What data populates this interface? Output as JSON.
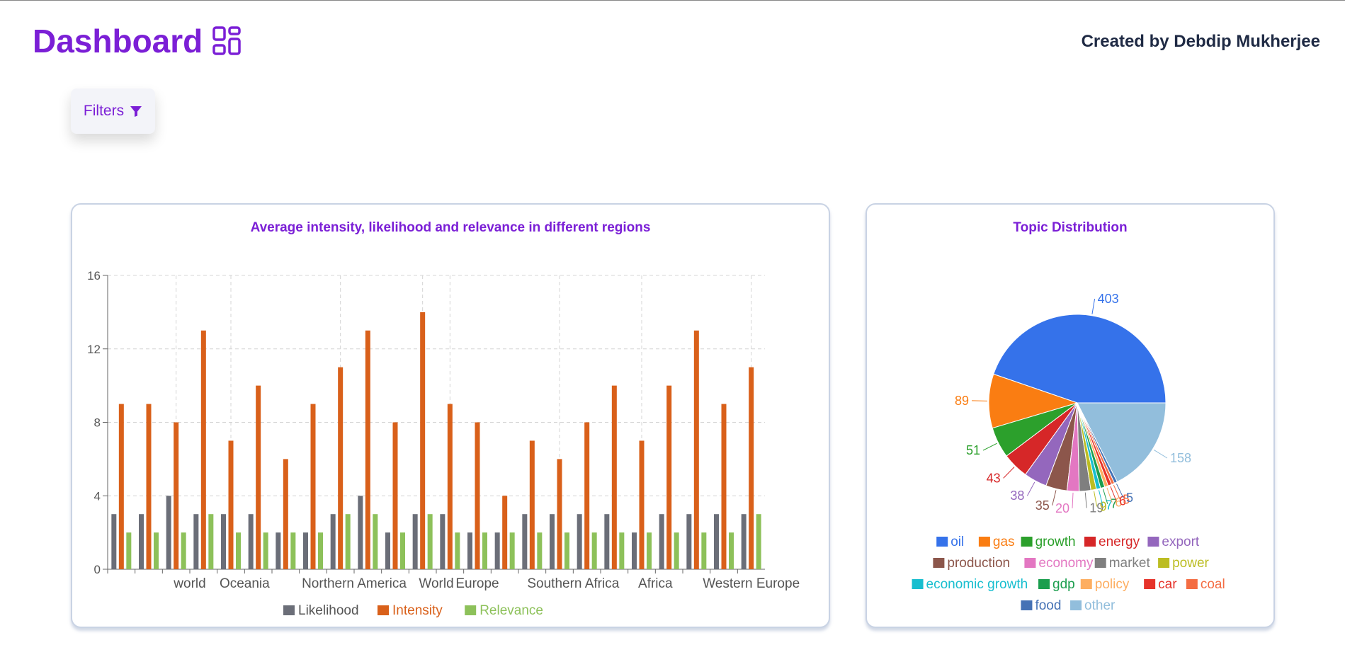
{
  "header": {
    "title": "Dashboard",
    "credit": "Created by Debdip Mukherjee"
  },
  "filters": {
    "label": "Filters"
  },
  "colors": {
    "accent": "#7b1fd6",
    "likelihood": "#6b6e78",
    "intensity": "#d9601a",
    "relevance": "#8dc15a"
  },
  "chart_data": [
    {
      "type": "bar",
      "title": "Average intensity, likelihood and relevance in different regions",
      "xlabel": "",
      "ylabel": "",
      "ylim": [
        0,
        16
      ],
      "yticks": [
        "0",
        "4",
        "8",
        "12",
        "16"
      ],
      "x_tick_labels": [
        "world",
        "Oceania",
        "Northern America",
        "World",
        "Europe",
        "Southern Africa",
        "Africa",
        "Western Europe"
      ],
      "grid": true,
      "legend_placement": "bottom",
      "series": [
        {
          "name": "Likelihood",
          "color": "#6b6e78",
          "values": [
            3,
            3,
            4,
            3,
            3,
            3,
            2,
            2,
            3,
            4,
            2,
            3,
            3,
            2,
            2,
            3,
            3,
            3,
            3,
            2,
            3,
            3,
            3,
            3
          ]
        },
        {
          "name": "Intensity",
          "color": "#d9601a",
          "values": [
            9,
            9,
            8,
            13,
            7,
            10,
            6,
            9,
            11,
            13,
            8,
            14,
            9,
            8,
            4,
            7,
            6,
            8,
            10,
            7,
            10,
            13,
            9,
            11
          ]
        },
        {
          "name": "Relevance",
          "color": "#8dc15a",
          "values": [
            2,
            2,
            2,
            3,
            2,
            2,
            2,
            2,
            3,
            3,
            2,
            3,
            2,
            2,
            2,
            2,
            2,
            2,
            2,
            2,
            2,
            2,
            2,
            3
          ]
        }
      ]
    },
    {
      "type": "pie",
      "title": "Topic Distribution",
      "legend_placement": "bottom",
      "slices": [
        {
          "label": "oil",
          "value": 403,
          "color": "#3572ea"
        },
        {
          "label": "gas",
          "value": 89,
          "color": "#fa7d12"
        },
        {
          "label": "growth",
          "value": 51,
          "color": "#2ca02c"
        },
        {
          "label": "energy",
          "value": 43,
          "color": "#d62728"
        },
        {
          "label": "export",
          "value": 38,
          "color": "#9467bd"
        },
        {
          "label": "production",
          "value": 35,
          "color": "#8c564b"
        },
        {
          "label": "economy",
          "value": 20,
          "color": "#e377c2"
        },
        {
          "label": "market",
          "value": 19,
          "color": "#7f7f7f"
        },
        {
          "label": "power",
          "value": 9,
          "color": "#bcbd22"
        },
        {
          "label": "economic growth",
          "value": 7,
          "color": "#17becf"
        },
        {
          "label": "gdp",
          "value": 7,
          "color": "#1b9e4e"
        },
        {
          "label": "policy",
          "value": 6,
          "color": "#fdae61"
        },
        {
          "label": "car",
          "value": 6,
          "color": "#e6332a"
        },
        {
          "label": "coal",
          "value": 5,
          "color": "#f46d43"
        },
        {
          "label": "food",
          "value": 5,
          "color": "#4572b5"
        },
        {
          "label": "other",
          "value": 158,
          "color": "#92bedc"
        }
      ]
    }
  ]
}
